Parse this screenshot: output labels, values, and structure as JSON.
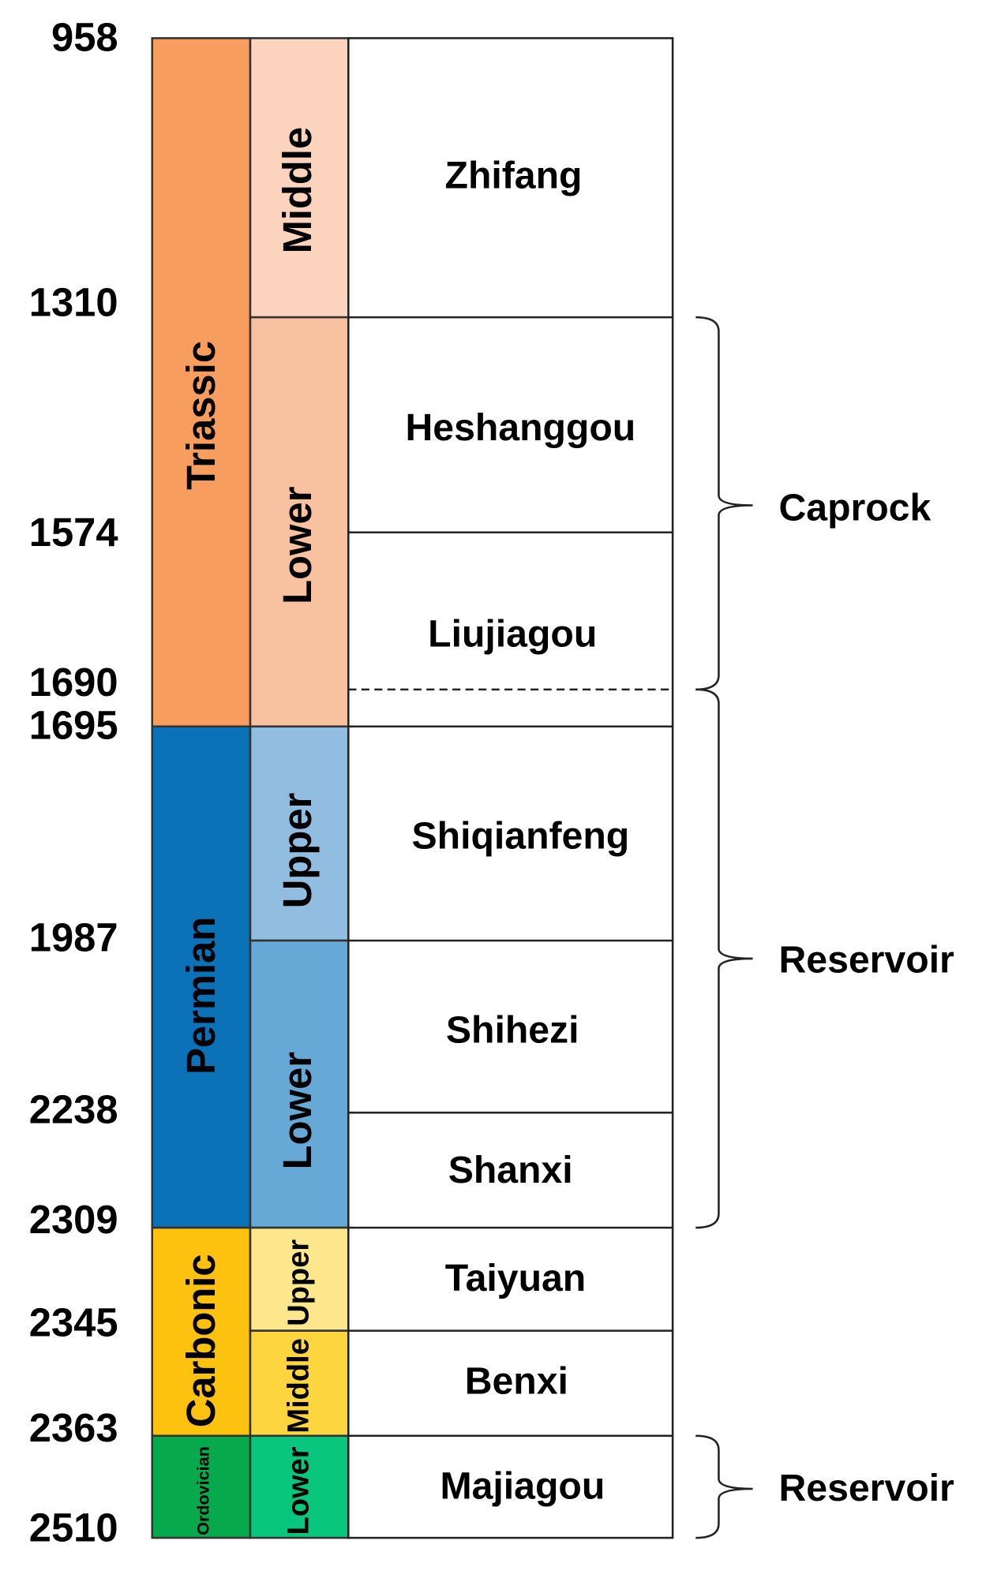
{
  "depths": [
    958,
    1310,
    1574,
    1690,
    1695,
    1987,
    2238,
    2309,
    2345,
    2363,
    2510
  ],
  "systems": [
    "Triassic",
    "Permian",
    "Carbonic",
    "Ordovician"
  ],
  "series": [
    "Middle",
    "Lower",
    "Upper",
    "Lower",
    "Upper",
    "Middle",
    "Lower"
  ],
  "formations": [
    "Zhifang",
    "Heshanggou",
    "Liujiagou",
    "Shiqianfeng",
    "Shihezi",
    "Shanxi",
    "Taiyuan",
    "Benxi",
    "Majiagou"
  ],
  "brackets": [
    "Caprock",
    "Reservoir",
    "Reservoir"
  ]
}
